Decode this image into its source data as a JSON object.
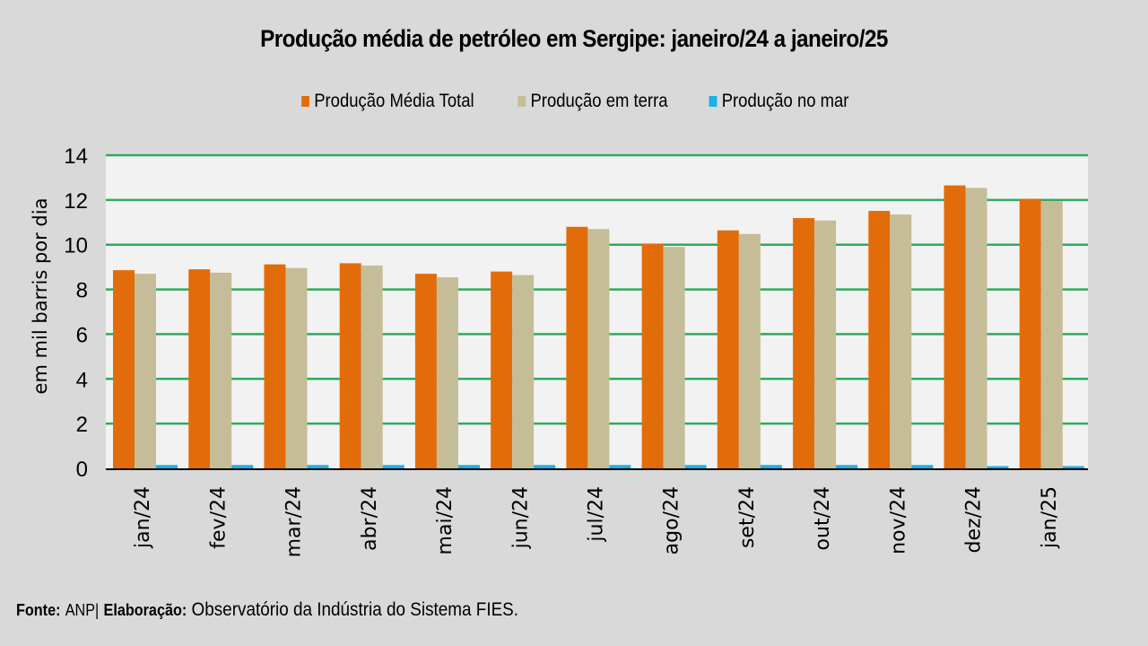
{
  "chart_data": {
    "type": "bar",
    "title": "Produção média de petróleo em Sergipe: janeiro/24 a janeiro/25",
    "xlabel": "",
    "ylabel": "em mil barris por dia",
    "ylim": [
      0,
      14
    ],
    "yticks": [
      0,
      2,
      4,
      6,
      8,
      10,
      12,
      14
    ],
    "grid": true,
    "legend_position": "top-center",
    "categories": [
      "jan/24",
      "fev/24",
      "mar/24",
      "abr/24",
      "mai/24",
      "jun/24",
      "jul/24",
      "ago/24",
      "set/24",
      "out/24",
      "nov/24",
      "dez/24",
      "jan/25"
    ],
    "series": [
      {
        "name": "Produção Média Total",
        "color": "#e36c0a",
        "values": [
          8.86,
          8.9,
          9.12,
          9.17,
          8.7,
          8.8,
          10.8,
          10.05,
          10.64,
          11.19,
          11.51,
          12.65,
          12.05
        ]
      },
      {
        "name": "Produção em terra",
        "color": "#c4bd97",
        "values": [
          8.7,
          8.75,
          8.96,
          9.07,
          8.54,
          8.64,
          10.7,
          9.9,
          10.48,
          11.08,
          11.35,
          12.54,
          11.95
        ]
      },
      {
        "name": "Produção no mar",
        "color": "#1eaee8",
        "values": [
          0.15,
          0.15,
          0.15,
          0.15,
          0.15,
          0.15,
          0.15,
          0.15,
          0.15,
          0.15,
          0.15,
          0.1,
          0.1
        ]
      }
    ]
  },
  "colors": {
    "background": "#d9d9d9",
    "plot_background": "#f2f2f2",
    "gridline": "#2eaa5c",
    "axis": "#000000"
  },
  "footer": {
    "source_label": "Fonte:",
    "source_value": "ANP|",
    "credit_label": "Elaboração:",
    "credit_value": "Observatório da Indústria do Sistema FIES."
  }
}
